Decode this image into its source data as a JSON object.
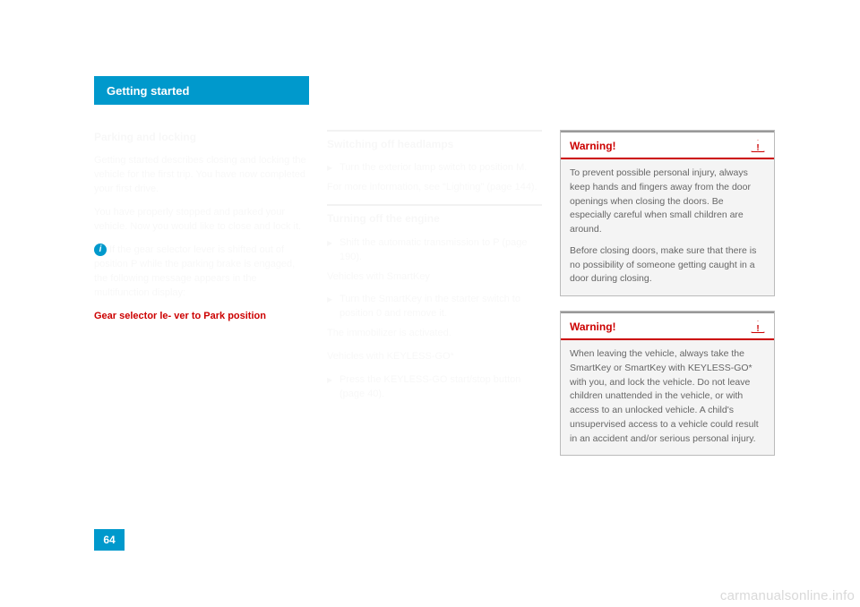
{
  "header": {
    "title": "Getting started"
  },
  "page_number": "64",
  "watermark": "carmanualsonline.info",
  "col1": {
    "heading": "Parking and locking",
    "p1": "Getting started describes closing and locking the vehicle for the first trip. You have now completed your first drive.",
    "p2": "You have properly stopped and parked your vehicle. Now you would like to close and lock it.",
    "info_text": "If the gear selector lever is shifted out of position P while the parking brake is engaged, the following message appears in the multifunction display:",
    "red_text_prefix": "",
    "red_text": "Gear selector le-\nver to Park position"
  },
  "col2": {
    "section": "Switching off headlamps",
    "l1": "Turn the exterior lamp switch to position M.",
    "l2": "For more information, see \"Lighting\" (page 144).",
    "section2": "Turning off the engine",
    "l3": "Shift the automatic transmission to P (page 190).",
    "sub1": "Vehicles with SmartKey",
    "l4": "Turn the SmartKey in the starter switch to position 0 and remove it.",
    "l4b": "The immobilizer is activated.",
    "sub2": "Vehicles with KEYLESS-GO*",
    "l5": "Press the KEYLESS-GO start/stop button (page 40)."
  },
  "col3": {
    "warnings": [
      {
        "label": "Warning!",
        "p1": "To prevent possible personal injury, always keep hands and fingers away from the door openings when closing the doors. Be especially careful when small children are around.",
        "p2": "Before closing doors, make sure that there is no possibility of someone getting caught in a door during closing."
      },
      {
        "label": "Warning!",
        "p1": "When leaving the vehicle, always take the SmartKey or SmartKey with KEYLESS-GO* with you, and lock the vehicle. Do not leave children unattended in the vehicle, or with access to an unlocked vehicle. A child's unsupervised access to a vehicle could result in an accident and/or serious personal injury."
      }
    ]
  },
  "styling": {
    "accent_color": "#0099cc",
    "warning_color": "#cc0000",
    "box_bg": "#f4f4f4",
    "page_bg": "#ffffff",
    "body_font_size": 11,
    "warning_body_color": "#666666"
  }
}
